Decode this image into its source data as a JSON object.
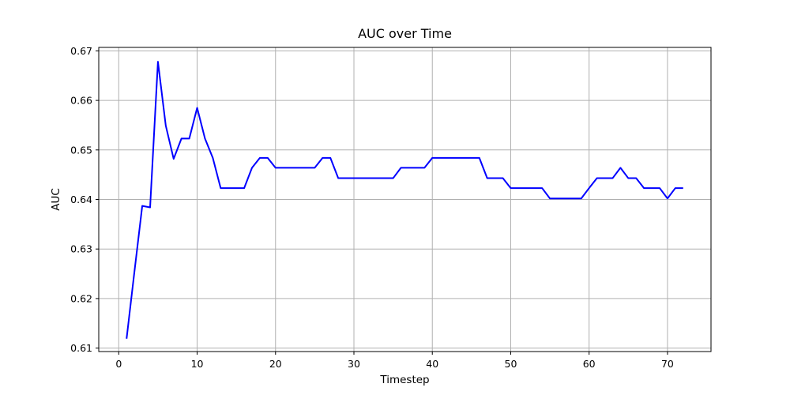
{
  "chart_data": {
    "type": "line",
    "title": "AUC over Time",
    "xlabel": "Timestep",
    "ylabel": "AUC",
    "xlim": [
      -2.55,
      75.55
    ],
    "ylim": [
      0.6093,
      0.6707
    ],
    "xticks": [
      0,
      10,
      20,
      30,
      40,
      50,
      60,
      70
    ],
    "yticks": [
      0.61,
      0.62,
      0.63,
      0.64,
      0.65,
      0.66,
      0.67
    ],
    "ytick_labels": [
      "0.61",
      "0.62",
      "0.63",
      "0.64",
      "0.65",
      "0.66",
      "0.67"
    ],
    "grid": true,
    "series": [
      {
        "color": "#0000ff",
        "x": [
          1,
          2,
          3,
          4,
          5,
          6,
          7,
          8,
          9,
          10,
          11,
          12,
          13,
          14,
          15,
          16,
          17,
          18,
          19,
          20,
          21,
          22,
          23,
          24,
          25,
          26,
          27,
          28,
          29,
          30,
          31,
          32,
          33,
          34,
          35,
          36,
          37,
          38,
          39,
          40,
          41,
          42,
          43,
          44,
          45,
          46,
          47,
          48,
          49,
          50,
          51,
          52,
          53,
          54,
          55,
          56,
          57,
          58,
          59,
          60,
          61,
          62,
          63,
          64,
          65,
          66,
          67,
          68,
          69,
          70,
          71,
          72
        ],
        "y": [
          0.6119,
          0.6254,
          0.6387,
          0.6384,
          0.6678,
          0.6549,
          0.6482,
          0.6523,
          0.6523,
          0.6585,
          0.6523,
          0.6484,
          0.6423,
          0.6423,
          0.6423,
          0.6423,
          0.6464,
          0.6484,
          0.6484,
          0.6464,
          0.6464,
          0.6464,
          0.6464,
          0.6464,
          0.6464,
          0.6484,
          0.6484,
          0.6443,
          0.6443,
          0.6443,
          0.6443,
          0.6443,
          0.6443,
          0.6443,
          0.6443,
          0.6464,
          0.6464,
          0.6464,
          0.6464,
          0.6484,
          0.6484,
          0.6484,
          0.6484,
          0.6484,
          0.6484,
          0.6484,
          0.6443,
          0.6443,
          0.6443,
          0.6423,
          0.6423,
          0.6423,
          0.6423,
          0.6423,
          0.6402,
          0.6402,
          0.6402,
          0.6402,
          0.6402,
          0.6423,
          0.6443,
          0.6443,
          0.6443,
          0.6464,
          0.6443,
          0.6443,
          0.6423,
          0.6423,
          0.6423,
          0.6402,
          0.6423,
          0.6423
        ]
      }
    ]
  }
}
